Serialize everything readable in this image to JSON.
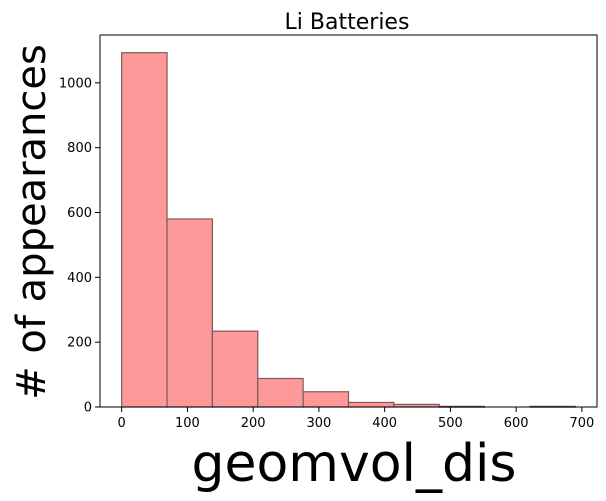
{
  "chart_data": {
    "type": "bar",
    "title": "Li Batteries",
    "xlabel": "geomvol_dis",
    "ylabel": "# of appearances",
    "bin_edges": [
      0,
      69,
      138,
      207,
      276,
      345,
      414,
      483,
      552,
      621,
      690
    ],
    "values": [
      1093,
      580,
      234,
      88,
      47,
      14,
      8,
      2,
      0,
      2
    ],
    "xlim": [
      -33,
      723
    ],
    "ylim": [
      0,
      1147.6
    ],
    "xticks": [
      0,
      100,
      200,
      300,
      400,
      500,
      600,
      700
    ],
    "yticks": [
      0,
      200,
      400,
      600,
      800,
      1000
    ],
    "grid": false,
    "bar_color": "#ff9999",
    "edge_color": "#7a5a5a"
  }
}
